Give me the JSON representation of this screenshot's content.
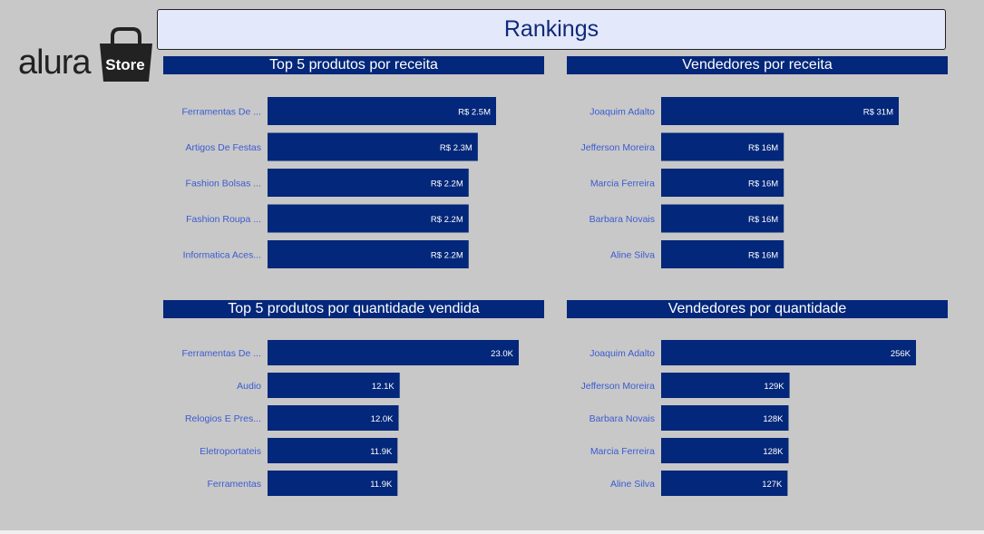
{
  "header": {
    "title": "Rankings"
  },
  "logo": {
    "word": "alura",
    "badge": "Store"
  },
  "colors": {
    "bar": "#03277a",
    "label": "#3b5bd1",
    "background": "#c8c8c8"
  },
  "chart_data": [
    {
      "type": "bar",
      "orientation": "horizontal",
      "title": "Top 5 produtos por receita",
      "categories": [
        "Ferramentas De ...",
        "Artigos De Festas",
        "Fashion Bolsas ...",
        "Fashion Roupa ...",
        "Informatica Aces..."
      ],
      "values": [
        2.5,
        2.3,
        2.2,
        2.2,
        2.2
      ],
      "value_labels": [
        "R$ 2.5M",
        "R$ 2.3M",
        "R$ 2.2M",
        "R$ 2.2M",
        "R$ 2.2M"
      ]
    },
    {
      "type": "bar",
      "orientation": "horizontal",
      "title": "Vendedores por receita",
      "categories": [
        "Joaquim Adalto",
        "Jefferson Moreira",
        "Marcia Ferreira",
        "Barbara Novais",
        "Aline Silva"
      ],
      "values": [
        31,
        16,
        16,
        16,
        16
      ],
      "value_labels": [
        "R$ 31M",
        "R$ 16M",
        "R$ 16M",
        "R$ 16M",
        "R$ 16M"
      ]
    },
    {
      "type": "bar",
      "orientation": "horizontal",
      "title": "Top 5 produtos por quantidade vendida",
      "categories": [
        "Ferramentas De ...",
        "Audio",
        "Relogios E Pres...",
        "Eletroportateis",
        "Ferramentas"
      ],
      "values": [
        23.0,
        12.1,
        12.0,
        11.9,
        11.9
      ],
      "value_labels": [
        "23.0K",
        "12.1K",
        "12.0K",
        "11.9K",
        "11.9K"
      ]
    },
    {
      "type": "bar",
      "orientation": "horizontal",
      "title": "Vendedores por quantidade",
      "categories": [
        "Joaquim Adalto",
        "Jefferson Moreira",
        "Barbara Novais",
        "Marcia Ferreira",
        "Aline Silva"
      ],
      "values": [
        256,
        129,
        128,
        128,
        127
      ],
      "value_labels": [
        "256K",
        "129K",
        "128K",
        "128K",
        "127K"
      ]
    }
  ]
}
